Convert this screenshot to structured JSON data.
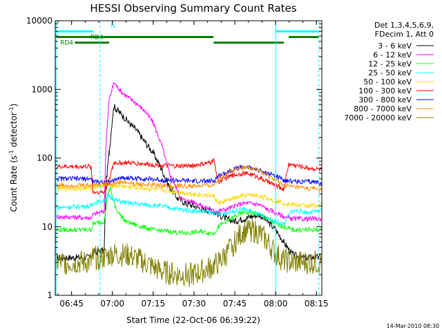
{
  "chart_data": {
    "type": "line",
    "title": "HESSI Observing Summary Count Rates",
    "xlabel": "Start Time (22-Oct-06 06:39:22)",
    "ylabel": "Count Rate (s⁻¹ detector⁻¹)",
    "ylabel_parts": {
      "main": "Count Rate (s",
      "sup1": "-1",
      "mid": " detector",
      "sup2": "-1",
      "end": ")"
    },
    "y_scale": "log",
    "ylim": [
      1,
      10000
    ],
    "xlim": [
      6.65,
      8.283
    ],
    "x_ticks": [
      {
        "value": 6.75,
        "label": "06:45"
      },
      {
        "value": 7.0,
        "label": "07:00"
      },
      {
        "value": 7.25,
        "label": "07:15"
      },
      {
        "value": 7.5,
        "label": "07:30"
      },
      {
        "value": 7.75,
        "label": "07:45"
      },
      {
        "value": 8.0,
        "label": "08:00"
      },
      {
        "value": 8.25,
        "label": "08:15"
      }
    ],
    "y_ticks": [
      {
        "value": 1,
        "label": "1"
      },
      {
        "value": 10,
        "label": "10"
      },
      {
        "value": 100,
        "label": "100"
      },
      {
        "value": 1000,
        "label": "1000"
      },
      {
        "value": 10000,
        "label": "10000"
      }
    ],
    "legend_header": [
      "Det 1,3,4,5,6,9,",
      "FDecim 1, Att 0"
    ],
    "legend_position": "outside-right",
    "series": [
      {
        "name": "3 - 6 keV",
        "color": "#000000",
        "points": [
          [
            6.66,
            3.5
          ],
          [
            6.87,
            3.6
          ],
          [
            6.88,
            4.2
          ],
          [
            6.95,
            4.5
          ],
          [
            6.96,
            40
          ],
          [
            6.98,
            120
          ],
          [
            7.0,
            380
          ],
          [
            7.01,
            560
          ],
          [
            7.03,
            500
          ],
          [
            7.06,
            420
          ],
          [
            7.1,
            330
          ],
          [
            7.15,
            250
          ],
          [
            7.2,
            170
          ],
          [
            7.25,
            120
          ],
          [
            7.3,
            70
          ],
          [
            7.35,
            38
          ],
          [
            7.4,
            26
          ],
          [
            7.45,
            22
          ],
          [
            7.5,
            20
          ],
          [
            7.55,
            18
          ],
          [
            7.62,
            17
          ],
          [
            7.65,
            15
          ],
          [
            7.7,
            13
          ],
          [
            7.75,
            12
          ],
          [
            7.8,
            13
          ],
          [
            7.85,
            14
          ],
          [
            7.9,
            15
          ],
          [
            7.95,
            12
          ],
          [
            8.0,
            9
          ],
          [
            8.05,
            6
          ],
          [
            8.1,
            4
          ],
          [
            8.15,
            3.5
          ],
          [
            8.28,
            3.6
          ]
        ]
      },
      {
        "name": "6 - 12 keV",
        "color": "#ff00ff",
        "points": [
          [
            6.66,
            14
          ],
          [
            6.87,
            13.5
          ],
          [
            6.88,
            15
          ],
          [
            6.95,
            17
          ],
          [
            6.96,
            150
          ],
          [
            6.98,
            700
          ],
          [
            7.0,
            1050
          ],
          [
            7.01,
            1250
          ],
          [
            7.03,
            1100
          ],
          [
            7.06,
            900
          ],
          [
            7.1,
            760
          ],
          [
            7.15,
            620
          ],
          [
            7.2,
            480
          ],
          [
            7.25,
            330
          ],
          [
            7.3,
            160
          ],
          [
            7.35,
            60
          ],
          [
            7.4,
            33
          ],
          [
            7.42,
            26
          ],
          [
            7.45,
            24
          ],
          [
            7.5,
            23
          ],
          [
            7.55,
            20
          ],
          [
            7.62,
            17
          ],
          [
            7.65,
            17
          ],
          [
            7.7,
            18
          ],
          [
            7.75,
            20
          ],
          [
            7.8,
            22
          ],
          [
            7.85,
            22
          ],
          [
            7.9,
            21
          ],
          [
            7.95,
            18
          ],
          [
            8.0,
            16
          ],
          [
            8.05,
            14
          ],
          [
            8.1,
            13
          ],
          [
            8.2,
            13
          ],
          [
            8.28,
            13
          ]
        ]
      },
      {
        "name": "12 - 25 keV",
        "color": "#00ff00",
        "points": [
          [
            6.66,
            9
          ],
          [
            6.87,
            9
          ],
          [
            6.88,
            11
          ],
          [
            6.95,
            12
          ],
          [
            6.97,
            28
          ],
          [
            6.99,
            38
          ],
          [
            7.0,
            26
          ],
          [
            7.03,
            17
          ],
          [
            7.08,
            12
          ],
          [
            7.15,
            10.5
          ],
          [
            7.25,
            9
          ],
          [
            7.35,
            8.5
          ],
          [
            7.45,
            8
          ],
          [
            7.55,
            8.5
          ],
          [
            7.62,
            8
          ],
          [
            7.65,
            10
          ],
          [
            7.7,
            12
          ],
          [
            7.75,
            14
          ],
          [
            7.8,
            16
          ],
          [
            7.85,
            16
          ],
          [
            7.9,
            15
          ],
          [
            7.95,
            13
          ],
          [
            8.0,
            11
          ],
          [
            8.05,
            10
          ],
          [
            8.1,
            9
          ],
          [
            8.2,
            9
          ],
          [
            8.28,
            9
          ]
        ]
      },
      {
        "name": "25 - 50 keV",
        "color": "#00ffff",
        "points": [
          [
            6.66,
            19
          ],
          [
            6.87,
            20
          ],
          [
            6.88,
            22
          ],
          [
            6.95,
            24
          ],
          [
            6.97,
            28
          ],
          [
            7.0,
            26
          ],
          [
            7.03,
            24
          ],
          [
            7.1,
            22
          ],
          [
            7.2,
            21
          ],
          [
            7.3,
            20
          ],
          [
            7.4,
            18
          ],
          [
            7.5,
            17
          ],
          [
            7.62,
            16
          ],
          [
            7.65,
            15
          ],
          [
            7.7,
            16
          ],
          [
            7.75,
            17
          ],
          [
            7.8,
            18
          ],
          [
            7.85,
            17
          ],
          [
            7.9,
            15
          ],
          [
            7.95,
            13
          ],
          [
            8.0,
            12
          ],
          [
            8.05,
            11
          ],
          [
            8.1,
            17
          ],
          [
            8.15,
            17
          ],
          [
            8.2,
            16
          ],
          [
            8.28,
            17
          ]
        ]
      },
      {
        "name": "50 - 100 keV",
        "color": "#ffd700",
        "points": [
          [
            6.66,
            36
          ],
          [
            6.87,
            36
          ],
          [
            6.88,
            38
          ],
          [
            6.95,
            40
          ],
          [
            7.0,
            40
          ],
          [
            7.1,
            38
          ],
          [
            7.2,
            36
          ],
          [
            7.3,
            34
          ],
          [
            7.4,
            32
          ],
          [
            7.5,
            30
          ],
          [
            7.62,
            28
          ],
          [
            7.65,
            22
          ],
          [
            7.7,
            24
          ],
          [
            7.75,
            26
          ],
          [
            7.8,
            28
          ],
          [
            7.85,
            29
          ],
          [
            7.9,
            28
          ],
          [
            7.95,
            26
          ],
          [
            8.0,
            24
          ],
          [
            8.05,
            22
          ],
          [
            8.1,
            21
          ],
          [
            8.2,
            20
          ],
          [
            8.28,
            21
          ]
        ]
      },
      {
        "name": "100 - 300 keV",
        "color": "#ff0000",
        "points": [
          [
            6.66,
            75
          ],
          [
            6.87,
            75
          ],
          [
            6.88,
            32
          ],
          [
            6.95,
            32
          ],
          [
            6.96,
            35
          ],
          [
            7.0,
            70
          ],
          [
            7.01,
            85
          ],
          [
            7.1,
            85
          ],
          [
            7.2,
            82
          ],
          [
            7.3,
            78
          ],
          [
            7.4,
            76
          ],
          [
            7.5,
            78
          ],
          [
            7.6,
            85
          ],
          [
            7.62,
            95
          ],
          [
            7.65,
            45
          ],
          [
            7.7,
            52
          ],
          [
            7.75,
            57
          ],
          [
            7.8,
            60
          ],
          [
            7.85,
            58
          ],
          [
            7.9,
            52
          ],
          [
            7.95,
            45
          ],
          [
            8.0,
            40
          ],
          [
            8.05,
            35
          ],
          [
            8.08,
            82
          ],
          [
            8.1,
            80
          ],
          [
            8.2,
            72
          ],
          [
            8.28,
            68
          ]
        ]
      },
      {
        "name": "300 - 800 keV",
        "color": "#0000ff",
        "points": [
          [
            6.66,
            50
          ],
          [
            6.87,
            50
          ],
          [
            6.88,
            45
          ],
          [
            6.95,
            45
          ],
          [
            7.0,
            46
          ],
          [
            7.05,
            52
          ],
          [
            7.1,
            51
          ],
          [
            7.2,
            50
          ],
          [
            7.3,
            48
          ],
          [
            7.4,
            47
          ],
          [
            7.5,
            46
          ],
          [
            7.62,
            46
          ],
          [
            7.65,
            55
          ],
          [
            7.7,
            62
          ],
          [
            7.75,
            70
          ],
          [
            7.8,
            74
          ],
          [
            7.85,
            72
          ],
          [
            7.9,
            66
          ],
          [
            7.95,
            60
          ],
          [
            8.0,
            55
          ],
          [
            8.05,
            48
          ],
          [
            8.1,
            46
          ],
          [
            8.2,
            45
          ],
          [
            8.28,
            44
          ]
        ]
      },
      {
        "name": "800 - 7000 keV",
        "color": "#ff8c00",
        "points": [
          [
            6.66,
            40
          ],
          [
            6.87,
            40
          ],
          [
            6.88,
            41
          ],
          [
            6.95,
            42
          ],
          [
            7.0,
            42
          ],
          [
            7.05,
            45
          ],
          [
            7.1,
            43
          ],
          [
            7.2,
            41
          ],
          [
            7.3,
            40
          ],
          [
            7.4,
            39
          ],
          [
            7.5,
            39
          ],
          [
            7.62,
            40
          ],
          [
            7.65,
            50
          ],
          [
            7.7,
            60
          ],
          [
            7.75,
            68
          ],
          [
            7.8,
            74
          ],
          [
            7.85,
            72
          ],
          [
            7.9,
            65
          ],
          [
            7.95,
            55
          ],
          [
            8.0,
            48
          ],
          [
            8.05,
            40
          ],
          [
            8.1,
            38
          ],
          [
            8.2,
            36
          ],
          [
            8.28,
            35
          ]
        ]
      },
      {
        "name": "7000 - 20000 keV",
        "color": "#808000",
        "points": [
          [
            6.66,
            3
          ],
          [
            6.87,
            3
          ],
          [
            6.88,
            3.5
          ],
          [
            6.95,
            3.5
          ],
          [
            7.0,
            4
          ],
          [
            7.1,
            3.8
          ],
          [
            7.2,
            3
          ],
          [
            7.3,
            2.2
          ],
          [
            7.4,
            2
          ],
          [
            7.5,
            2
          ],
          [
            7.6,
            2.5
          ],
          [
            7.65,
            3
          ],
          [
            7.7,
            4
          ],
          [
            7.75,
            6
          ],
          [
            7.8,
            8.5
          ],
          [
            7.85,
            9
          ],
          [
            7.9,
            8
          ],
          [
            7.95,
            6
          ],
          [
            8.0,
            4
          ],
          [
            8.05,
            3.2
          ],
          [
            8.1,
            3
          ],
          [
            8.2,
            3
          ],
          [
            8.28,
            3
          ]
        ]
      }
    ],
    "state_bars": [
      {
        "label": "",
        "color": "#00ffff",
        "segments": [
          [
            6.65,
            6.885
          ],
          [
            8.0,
            8.265
          ]
        ],
        "y": 7000
      },
      {
        "label": "RD0",
        "color": "#008000",
        "segments": [
          [
            6.65,
            7.62
          ],
          [
            8.08,
            8.265
          ]
        ],
        "y": 5800
      },
      {
        "label": "RD4",
        "color": "#008000",
        "segments": [
          [
            6.77,
            6.98
          ],
          [
            7.62,
            8.05
          ]
        ],
        "y": 4800
      }
    ],
    "state_markers": [
      {
        "label": "N",
        "x": 6.99,
        "y": 7800,
        "color": "#00ffff"
      }
    ],
    "vertical_lines": [
      {
        "x": 6.655,
        "color": "#00ffff",
        "dashed": false
      },
      {
        "x": 6.925,
        "color": "#00ffff",
        "dashed": true
      },
      {
        "x": 8.0,
        "color": "#00ffff",
        "dashed": false
      },
      {
        "x": 8.265,
        "color": "#00ffff",
        "dashed": true
      }
    ],
    "grid": false
  },
  "footer_date": "14-Mar-2010 08:30"
}
